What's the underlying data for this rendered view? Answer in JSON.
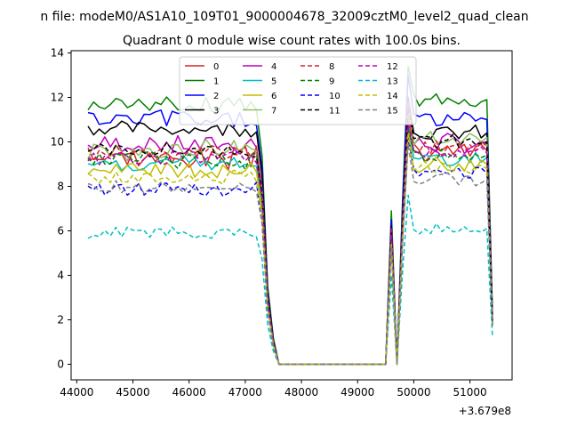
{
  "figure": {
    "suptitle": "n file: modeM0/AS1A10_109T01_9000004678_32009cztM0_level2_quad_clean",
    "title": "Quadrant 0 module wise count rates with 100.0s bins.",
    "offset_label": "+3.679e8"
  },
  "chart_data": {
    "type": "line",
    "title": "Quadrant 0 module wise count rates with 100.0s bins.",
    "xlabel": "",
    "ylabel": "",
    "x_offset": 367900000,
    "xlim": [
      43900,
      51750
    ],
    "ylim": [
      -0.7,
      14.1
    ],
    "xticks": [
      44000,
      45000,
      46000,
      47000,
      48000,
      49000,
      50000,
      51000
    ],
    "yticks": [
      0,
      2,
      4,
      6,
      8,
      10,
      12,
      14
    ],
    "grid": false,
    "legend": {
      "placement": "top-center",
      "ncol": 4
    },
    "segments": [
      {
        "x_start": 44200,
        "x_end": 47200,
        "step": 100,
        "kind": "noise"
      },
      {
        "x": [
          47300,
          47400,
          47500,
          47600
        ],
        "kind": "fall_in"
      },
      {
        "x_start": 47600,
        "x_end": 49500,
        "step": 100,
        "value": 0,
        "kind": "flat"
      },
      {
        "x": [
          49600,
          49700
        ],
        "kind": "spike"
      },
      {
        "x": [
          49800,
          49900
        ],
        "kind": "rise"
      },
      {
        "x_start": 50000,
        "x_end": 51200,
        "step": 100,
        "kind": "noise"
      },
      {
        "x": [
          51300,
          51400
        ],
        "kind": "tail"
      }
    ],
    "series": [
      {
        "name": "0",
        "color": "#d62728",
        "dash": "solid",
        "mean_left": 9.3,
        "mean_right": 9.6,
        "amp": 0.45,
        "spike": 6.0,
        "peak": 11.0
      },
      {
        "name": "1",
        "color": "#008000",
        "dash": "solid",
        "mean_left": 11.7,
        "mean_right": 11.9,
        "amp": 0.35,
        "spike": 6.9,
        "peak": 13.4
      },
      {
        "name": "2",
        "color": "#0000ff",
        "dash": "solid",
        "mean_left": 11.0,
        "mean_right": 11.0,
        "amp": 0.4,
        "spike": 6.5,
        "peak": 13.0
      },
      {
        "name": "3",
        "color": "#000000",
        "dash": "solid",
        "mean_left": 10.6,
        "mean_right": 10.4,
        "amp": 0.3,
        "spike": 6.2,
        "peak": 12.0
      },
      {
        "name": "4",
        "color": "#bf00bf",
        "dash": "solid",
        "mean_left": 9.9,
        "mean_right": 9.9,
        "amp": 0.4,
        "spike": 6.1,
        "peak": 11.8
      },
      {
        "name": "5",
        "color": "#00bfbf",
        "dash": "solid",
        "mean_left": 9.0,
        "mean_right": 9.3,
        "amp": 0.35,
        "spike": 5.7,
        "peak": 10.8
      },
      {
        "name": "6",
        "color": "#bfbf00",
        "dash": "solid",
        "mean_left": 8.7,
        "mean_right": 9.0,
        "amp": 0.35,
        "spike": 5.5,
        "peak": 10.5
      },
      {
        "name": "7",
        "color": "#90c060",
        "dash": "solid",
        "mean_left": 9.6,
        "mean_right": 10.2,
        "amp": 0.45,
        "spike": 5.9,
        "peak": 11.4
      },
      {
        "name": "8",
        "color": "#d62728",
        "dash": "dashed",
        "mean_left": 9.5,
        "mean_right": 9.8,
        "amp": 0.35,
        "spike": 6.0,
        "peak": 11.2
      },
      {
        "name": "9",
        "color": "#008000",
        "dash": "dashed",
        "mean_left": 9.2,
        "mean_right": 9.4,
        "amp": 0.35,
        "spike": 5.8,
        "peak": 10.6
      },
      {
        "name": "10",
        "color": "#0000ff",
        "dash": "dashed",
        "mean_left": 7.9,
        "mean_right": 8.6,
        "amp": 0.3,
        "spike": 5.3,
        "peak": 10.2
      },
      {
        "name": "11",
        "color": "#000000",
        "dash": "dashed",
        "mean_left": 9.6,
        "mean_right": 10.0,
        "amp": 0.3,
        "spike": 5.9,
        "peak": 11.5
      },
      {
        "name": "12",
        "color": "#bf00bf",
        "dash": "dashed",
        "mean_left": 9.3,
        "mean_right": 9.5,
        "amp": 0.3,
        "spike": 5.8,
        "peak": 10.8
      },
      {
        "name": "13",
        "color": "#00bfbf",
        "dash": "dashed",
        "mean_left": 5.9,
        "mean_right": 6.1,
        "amp": 0.25,
        "spike": 4.0,
        "peak": 7.6
      },
      {
        "name": "14",
        "color": "#bfbf00",
        "dash": "dashed",
        "mean_left": 8.4,
        "mean_right": 8.8,
        "amp": 0.3,
        "spike": 5.4,
        "peak": 10.4
      },
      {
        "name": "15",
        "color": "#808080",
        "dash": "dashed",
        "mean_left": 7.9,
        "mean_right": 8.3,
        "amp": 0.3,
        "spike": 5.2,
        "peak": 9.9
      }
    ]
  }
}
